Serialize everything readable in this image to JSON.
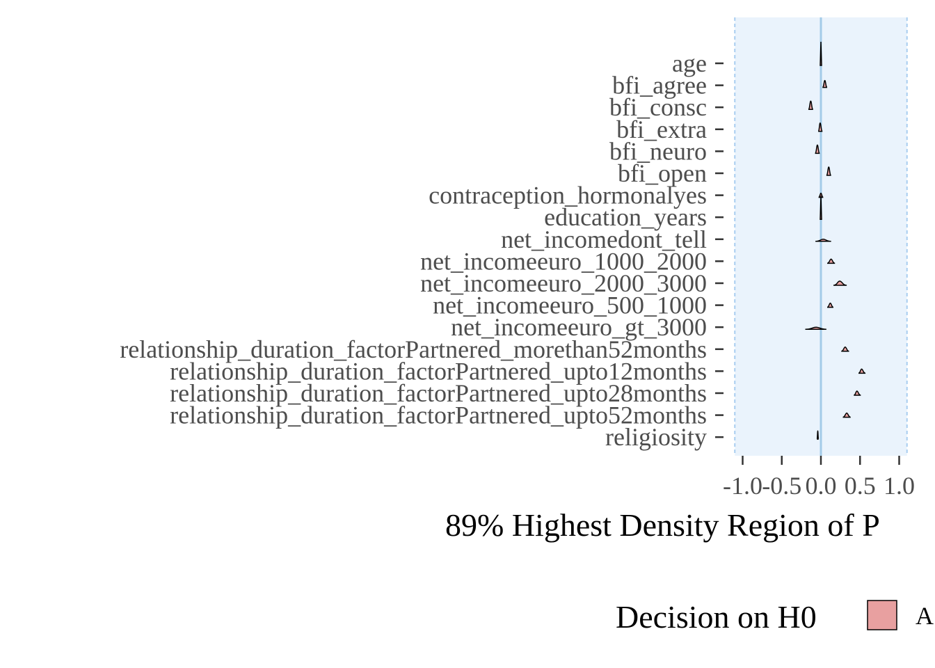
{
  "chart_data": {
    "type": "density",
    "xlabel": "89% Highest Density Region of P",
    "xlim": [
      -1.2,
      1.1
    ],
    "x_ticks": [
      {
        "value": -1.0,
        "label": "-1.0"
      },
      {
        "value": -0.5,
        "label": "-0.5"
      },
      {
        "value": 0.0,
        "label": "0.0"
      },
      {
        "value": 0.5,
        "label": "0.5"
      },
      {
        "value": 1.0,
        "label": "1.0"
      }
    ],
    "rope": [
      -1.1,
      1.1
    ],
    "reference_line": 0.0,
    "categories": [
      "age",
      "bfi_agree",
      "bfi_consc",
      "bfi_extra",
      "bfi_neuro",
      "bfi_open",
      "contraception_hormonalyes",
      "education_years",
      "net_incomedont_tell",
      "net_incomeeuro_1000_2000",
      "net_incomeeuro_2000_3000",
      "net_incomeeuro_500_1000",
      "net_incomeeuro_gt_3000",
      "relationship_duration_factorPartnered_morethan52months",
      "relationship_duration_factorPartnered_upto12months",
      "relationship_duration_factorPartnered_upto28months",
      "relationship_duration_factorPartnered_upto52months",
      "religiosity"
    ],
    "series": [
      {
        "values": [
          {
            "center": 0.0,
            "low": -0.005,
            "high": 0.005,
            "height": 0.012,
            "decision": "Accepted"
          },
          {
            "center": 0.05,
            "low": 0.02,
            "high": 0.08,
            "height": 0.5,
            "decision": "Accepted"
          },
          {
            "center": -0.13,
            "low": -0.16,
            "high": -0.1,
            "height": 0.6,
            "decision": "Accepted"
          },
          {
            "center": -0.01,
            "low": -0.035,
            "high": 0.02,
            "height": 0.6,
            "decision": "Accepted"
          },
          {
            "center": -0.045,
            "low": -0.075,
            "high": -0.015,
            "height": 0.6,
            "decision": "Accepted"
          },
          {
            "center": 0.1,
            "low": 0.07,
            "high": 0.13,
            "height": 0.6,
            "decision": "Accepted"
          },
          {
            "center": 0.0,
            "low": -0.03,
            "high": 0.03,
            "height": 0.3,
            "decision": "Accepted"
          },
          {
            "center": 0.0,
            "low": -0.005,
            "high": 0.005,
            "height": 0.012,
            "decision": "Accepted"
          },
          {
            "center": 0.03,
            "low": -0.07,
            "high": 0.13,
            "height": 0.15,
            "decision": "Accepted"
          },
          {
            "center": 0.13,
            "low": 0.08,
            "high": 0.18,
            "height": 0.3,
            "decision": "Accepted"
          },
          {
            "center": 0.24,
            "low": 0.16,
            "high": 0.33,
            "height": 0.3,
            "decision": "Accepted"
          },
          {
            "center": 0.12,
            "low": 0.08,
            "high": 0.16,
            "height": 0.3,
            "decision": "Accepted"
          },
          {
            "center": -0.06,
            "low": -0.2,
            "high": 0.07,
            "height": 0.15,
            "decision": "Accepted"
          },
          {
            "center": 0.31,
            "low": 0.26,
            "high": 0.36,
            "height": 0.3,
            "decision": "Accepted"
          },
          {
            "center": 0.52,
            "low": 0.48,
            "high": 0.57,
            "height": 0.3,
            "decision": "Accepted"
          },
          {
            "center": 0.46,
            "low": 0.42,
            "high": 0.51,
            "height": 0.3,
            "decision": "Accepted"
          },
          {
            "center": 0.33,
            "low": 0.28,
            "high": 0.38,
            "height": 0.3,
            "decision": "Accepted"
          },
          {
            "center": -0.04,
            "low": -0.05,
            "high": -0.03,
            "height": 0.6,
            "decision": "Accepted"
          }
        ]
      }
    ],
    "legend": {
      "title": "Decision on H0",
      "entries": [
        {
          "label": "A",
          "color": "#e8a0a0"
        }
      ]
    },
    "grid": false
  },
  "colors": {
    "rope_fill": "#eaf3fc",
    "rope_border": "#a8cdf0",
    "zero_line": "#a3cbe8",
    "density_fill": "#e8a0a0",
    "density_stroke": "#000000",
    "tick_color": "#333333"
  }
}
